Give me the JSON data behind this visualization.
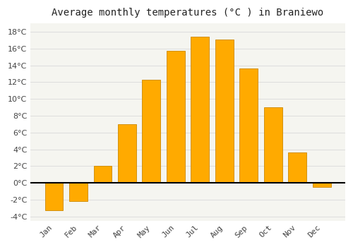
{
  "title": "Average monthly temperatures (°C ) in Braniewo",
  "months": [
    "Jan",
    "Feb",
    "Mar",
    "Apr",
    "May",
    "Jun",
    "Jul",
    "Aug",
    "Sep",
    "Oct",
    "Nov",
    "Dec"
  ],
  "values": [
    -3.3,
    -2.2,
    2.0,
    7.0,
    12.3,
    15.7,
    17.4,
    17.1,
    13.6,
    9.0,
    3.6,
    -0.5
  ],
  "bar_color": "#FFAA00",
  "bar_edge_color": "#CC8800",
  "ylim": [
    -4.5,
    19.0
  ],
  "yticks": [
    -4,
    -2,
    0,
    2,
    4,
    6,
    8,
    10,
    12,
    14,
    16,
    18
  ],
  "background_color": "#ffffff",
  "plot_bg_color": "#f5f5f0",
  "grid_color": "#dddddd",
  "title_fontsize": 10,
  "tick_fontsize": 8,
  "zero_line_color": "#000000"
}
